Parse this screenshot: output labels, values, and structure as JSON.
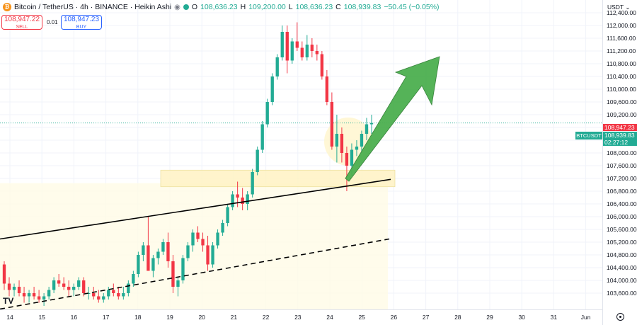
{
  "header": {
    "symbol_title": "Bitcoin / TetherUS · 4h · BINANCE · Heikin Ashi",
    "logo_letter": "₿",
    "open_label": "O",
    "open_value": "108,636.23",
    "high_label": "H",
    "high_value": "109,200.00",
    "low_label": "L",
    "low_value": "108,636.23",
    "close_label": "C",
    "close_value": "108,939.83",
    "change": "−50.45 (−0.05%)"
  },
  "trade": {
    "sell_price": "108,947.22",
    "sell_label": "SELL",
    "spread": "0.01",
    "buy_price": "108,947.23",
    "buy_label": "BUY"
  },
  "price_axis": {
    "currency": "USDT",
    "ticks": [
      "112,400.00",
      "112,000.00",
      "111,600.00",
      "111,200.00",
      "110,800.00",
      "110,400.00",
      "110,000.00",
      "109,600.00",
      "109,200.00",
      "108,800.00",
      "108,400.00",
      "108,000.00",
      "107,600.00",
      "107,200.00",
      "106,800.00",
      "106,400.00",
      "106,000.00",
      "105,600.00",
      "105,200.00",
      "104,800.00",
      "104,400.00",
      "104,000.00",
      "103,600.00"
    ],
    "ask_price": "108,947.23",
    "last_price": "108,939.83",
    "countdown": "02:27:12",
    "symbol_tag": "BTCUSDT"
  },
  "time_axis": {
    "labels": [
      "14",
      "15",
      "16",
      "17",
      "18",
      "19",
      "20",
      "21",
      "22",
      "23",
      "24",
      "25",
      "26",
      "27",
      "28",
      "29",
      "30",
      "31",
      "Jun"
    ]
  },
  "colors": {
    "up": "#22ab94",
    "down": "#f23645",
    "arrow": "#4caf50",
    "zone": "#fff3c4"
  },
  "chart_data": {
    "type": "candlestick",
    "style": "Heikin Ashi",
    "timeframe": "4h",
    "ylim": [
      103400,
      112700
    ],
    "last_price": 108939.83,
    "candles": [
      [
        104500,
        104600,
        103700,
        103900
      ],
      [
        103900,
        104100,
        103500,
        103700
      ],
      [
        103700,
        103900,
        103500,
        103800
      ],
      [
        103800,
        104000,
        103500,
        103600
      ],
      [
        103600,
        103800,
        103300,
        103500
      ],
      [
        103500,
        103700,
        103300,
        103600
      ],
      [
        103600,
        103800,
        103400,
        103500
      ],
      [
        103500,
        103700,
        103300,
        103400
      ],
      [
        103400,
        103600,
        103200,
        103500
      ],
      [
        103500,
        103800,
        103400,
        103700
      ],
      [
        103700,
        104100,
        103600,
        104000
      ],
      [
        104000,
        104200,
        103800,
        103900
      ],
      [
        103900,
        104100,
        103700,
        103800
      ],
      [
        103800,
        104000,
        103500,
        103700
      ],
      [
        103700,
        103900,
        103500,
        103800
      ],
      [
        103800,
        104100,
        103700,
        104000
      ],
      [
        104000,
        104100,
        103500,
        103600
      ],
      [
        103600,
        103800,
        103400,
        103600
      ],
      [
        103600,
        103800,
        103400,
        103500
      ],
      [
        103500,
        103700,
        103300,
        103400
      ],
      [
        103400,
        103600,
        103300,
        103500
      ],
      [
        103500,
        103800,
        103400,
        103700
      ],
      [
        103700,
        103900,
        103500,
        103600
      ],
      [
        103600,
        103800,
        103400,
        103500
      ],
      [
        103500,
        103800,
        103400,
        103600
      ],
      [
        103600,
        104000,
        103500,
        103900
      ],
      [
        103900,
        104300,
        103800,
        104200
      ],
      [
        104200,
        104900,
        104100,
        104800
      ],
      [
        104800,
        105200,
        104600,
        105100
      ],
      [
        105100,
        106000,
        104300,
        104300
      ],
      [
        104300,
        104800,
        104100,
        104700
      ],
      [
        104700,
        105000,
        104500,
        104900
      ],
      [
        104900,
        105300,
        104800,
        105200
      ],
      [
        105200,
        105500,
        104400,
        104600
      ],
      [
        104600,
        104800,
        103600,
        103800
      ],
      [
        103800,
        104100,
        103500,
        104000
      ],
      [
        104000,
        104800,
        103900,
        104700
      ],
      [
        104700,
        105200,
        104600,
        105100
      ],
      [
        105100,
        105600,
        104900,
        105500
      ],
      [
        105500,
        105700,
        105200,
        105300
      ],
      [
        105300,
        105500,
        104900,
        105100
      ],
      [
        105100,
        105400,
        104300,
        104500
      ],
      [
        104500,
        105200,
        104400,
        105100
      ],
      [
        105100,
        105600,
        105000,
        105500
      ],
      [
        105500,
        105900,
        105400,
        105800
      ],
      [
        105800,
        106400,
        105700,
        106300
      ],
      [
        106300,
        106800,
        106200,
        106700
      ],
      [
        106700,
        107100,
        106300,
        106600
      ],
      [
        106600,
        106900,
        106200,
        106400
      ],
      [
        106400,
        106800,
        106200,
        106700
      ],
      [
        106700,
        107500,
        106600,
        107400
      ],
      [
        107400,
        108200,
        107300,
        108100
      ],
      [
        108100,
        109000,
        108000,
        108900
      ],
      [
        108900,
        109700,
        108800,
        109600
      ],
      [
        109600,
        110500,
        109500,
        110400
      ],
      [
        110400,
        111100,
        110300,
        111000
      ],
      [
        111000,
        112000,
        110900,
        111800
      ],
      [
        111800,
        112000,
        110500,
        110900
      ],
      [
        110900,
        111600,
        110800,
        111500
      ],
      [
        111500,
        112100,
        111200,
        111300
      ],
      [
        111300,
        111500,
        110900,
        111000
      ],
      [
        111000,
        111700,
        110900,
        111400
      ],
      [
        111400,
        111600,
        111000,
        111200
      ],
      [
        111200,
        111400,
        110900,
        111100
      ],
      [
        111100,
        111200,
        110300,
        110400
      ],
      [
        110400,
        110600,
        109500,
        109600
      ],
      [
        109600,
        109900,
        108100,
        108200
      ],
      [
        108200,
        109200,
        107700,
        108600
      ],
      [
        108600,
        108800,
        107700,
        108000
      ],
      [
        108000,
        108200,
        106800,
        107600
      ],
      [
        107600,
        108300,
        107300,
        108100
      ],
      [
        108100,
        108400,
        107900,
        108200
      ],
      [
        108200,
        108700,
        108000,
        108600
      ],
      [
        108600,
        109100,
        108400,
        108900
      ],
      [
        108900,
        109200,
        108600,
        108940
      ]
    ],
    "support_zone": [
      107050,
      107350
    ],
    "trendline_solid": {
      "from": [
        "Day 14",
        105300
      ],
      "to": [
        "Day 25",
        107170
      ]
    },
    "trendline_dashed": {
      "from": [
        "Day 14",
        103100
      ],
      "to": [
        "Day 26",
        105300
      ]
    },
    "annotation": "Green arrow pointing up from ~107,500 to ~111,800"
  }
}
